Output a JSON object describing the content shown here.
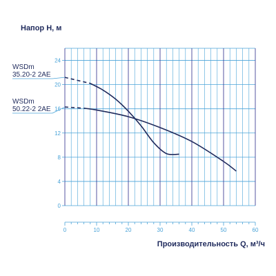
{
  "chart_data": {
    "type": "line",
    "ylabel": "Напор H, м",
    "xlabel": "Производительность Q, м³/ч",
    "xlim": [
      0,
      60
    ],
    "ylim": [
      0,
      26
    ],
    "x_major_ticks": [
      0,
      10,
      20,
      30,
      40,
      50,
      60
    ],
    "x_minor_step": 2,
    "y_ticks": [
      0,
      4,
      8,
      12,
      16,
      20,
      24
    ],
    "grid": true,
    "colors": {
      "curve": "#1f2a5c",
      "grid_v": "#2b2b8a",
      "grid_h": "#4aa3d8",
      "axis_text": "#4aa3d8",
      "label_text": "#1f2a5c"
    },
    "series": [
      {
        "name": "WSDm 35.20-2 2AE",
        "name_lines": [
          "WSDm",
          "35.20-2 2AE"
        ],
        "dashed_x": [
          0,
          8
        ],
        "dashed_y": [
          21.2,
          20.2
        ],
        "x": [
          8,
          12,
          16,
          20,
          24,
          28,
          32,
          36
        ],
        "y": [
          20.2,
          19.1,
          17.6,
          15.6,
          13.2,
          10.4,
          8.6,
          8.5
        ]
      },
      {
        "name": "WSDm 50.22-2 2AE",
        "name_lines": [
          "WSDm",
          "50.22-2 2AE"
        ],
        "dashed_x": [
          0,
          6
        ],
        "dashed_y": [
          16.3,
          16.1
        ],
        "x": [
          6,
          10,
          20,
          30,
          40,
          50,
          54
        ],
        "y": [
          16.1,
          15.8,
          14.7,
          12.9,
          10.6,
          7.3,
          5.7
        ]
      }
    ]
  }
}
